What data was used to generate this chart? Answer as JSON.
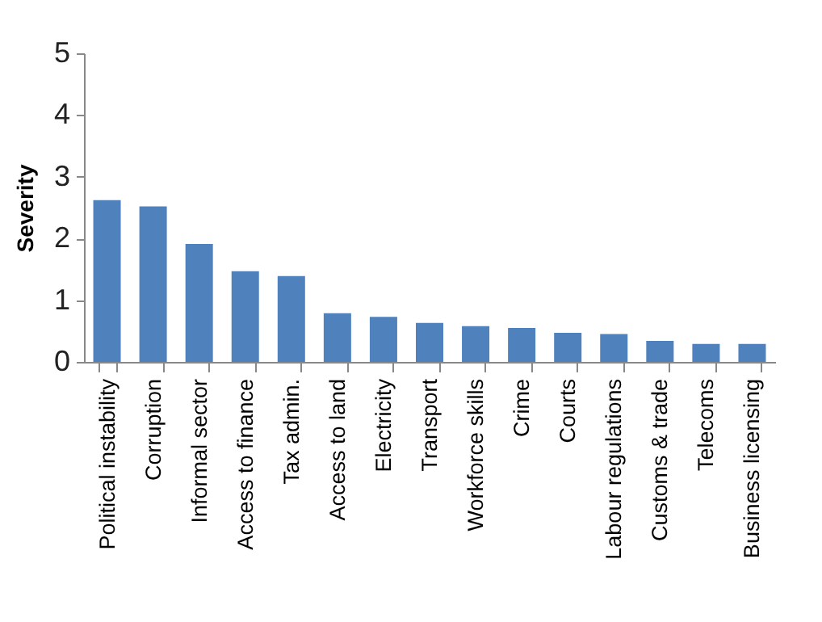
{
  "chart_data": {
    "type": "bar",
    "ylabel": "Severity",
    "categories": [
      "Political instability",
      "Corruption",
      "Informal sector",
      "Access to finance",
      "Tax admin.",
      "Access to land",
      "Electricity",
      "Transport",
      "Workforce skills",
      "Crime",
      "Courts",
      "Labour regulations",
      "Customs & trade",
      "Telecoms",
      "Business licensing"
    ],
    "values": [
      2.62,
      2.52,
      1.91,
      1.47,
      1.39,
      0.79,
      0.73,
      0.63,
      0.58,
      0.55,
      0.47,
      0.45,
      0.34,
      0.29,
      0.29
    ],
    "color": "#4f81bd",
    "ylim": [
      0,
      5
    ],
    "yticks": [
      0,
      1,
      2,
      3,
      4,
      5
    ],
    "grid": false
  }
}
